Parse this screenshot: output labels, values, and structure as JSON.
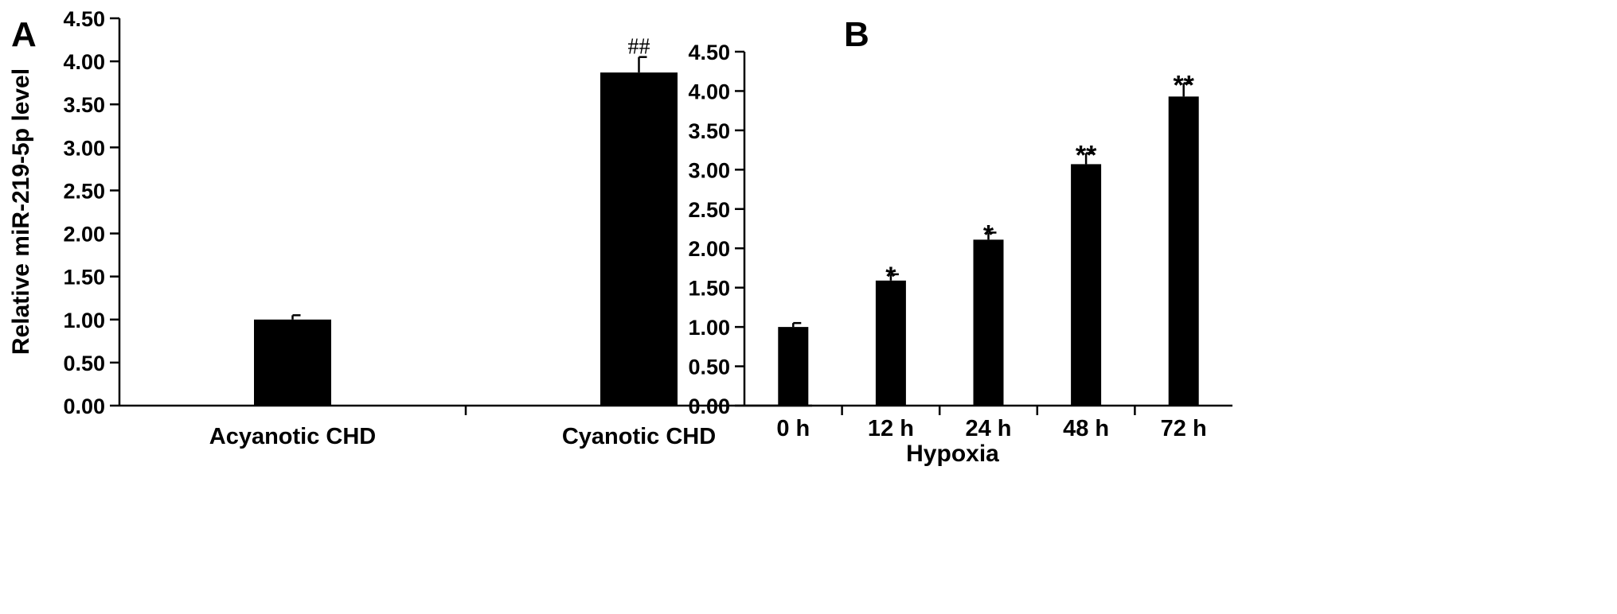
{
  "chart_data": [
    {
      "panel": "A",
      "type": "bar",
      "categories": [
        "Acyanotic CHD",
        "Cyanotic CHD"
      ],
      "values": [
        1.0,
        3.87
      ],
      "errors": [
        0.05,
        0.18
      ],
      "annotations": [
        "",
        "##"
      ],
      "ylabel": "Relative miR-219-5p level",
      "xlabel": "",
      "ylim": [
        0,
        4.5
      ],
      "yticks": [
        "0.00",
        "0.50",
        "1.00",
        "1.50",
        "2.00",
        "2.50",
        "3.00",
        "3.50",
        "4.00",
        "4.50"
      ],
      "bar_color": "#000000",
      "grid": false
    },
    {
      "panel": "B",
      "type": "bar",
      "categories": [
        "0 h",
        "12 h",
        "24 h",
        "48 h",
        "72 h"
      ],
      "values": [
        1.0,
        1.59,
        2.11,
        3.07,
        3.93
      ],
      "errors": [
        0.05,
        0.08,
        0.09,
        0.14,
        0.17
      ],
      "annotations": [
        "",
        "*",
        "*",
        "**",
        "**"
      ],
      "ylabel": "Relative miR-219-5p level",
      "xlabel": "Hypoxia",
      "ylim": [
        0,
        4.5
      ],
      "yticks": [
        "0.00",
        "0.50",
        "1.00",
        "1.50",
        "2.00",
        "2.50",
        "3.00",
        "3.50",
        "4.00",
        "4.50"
      ],
      "bar_color": "#000000",
      "grid": false
    }
  ]
}
